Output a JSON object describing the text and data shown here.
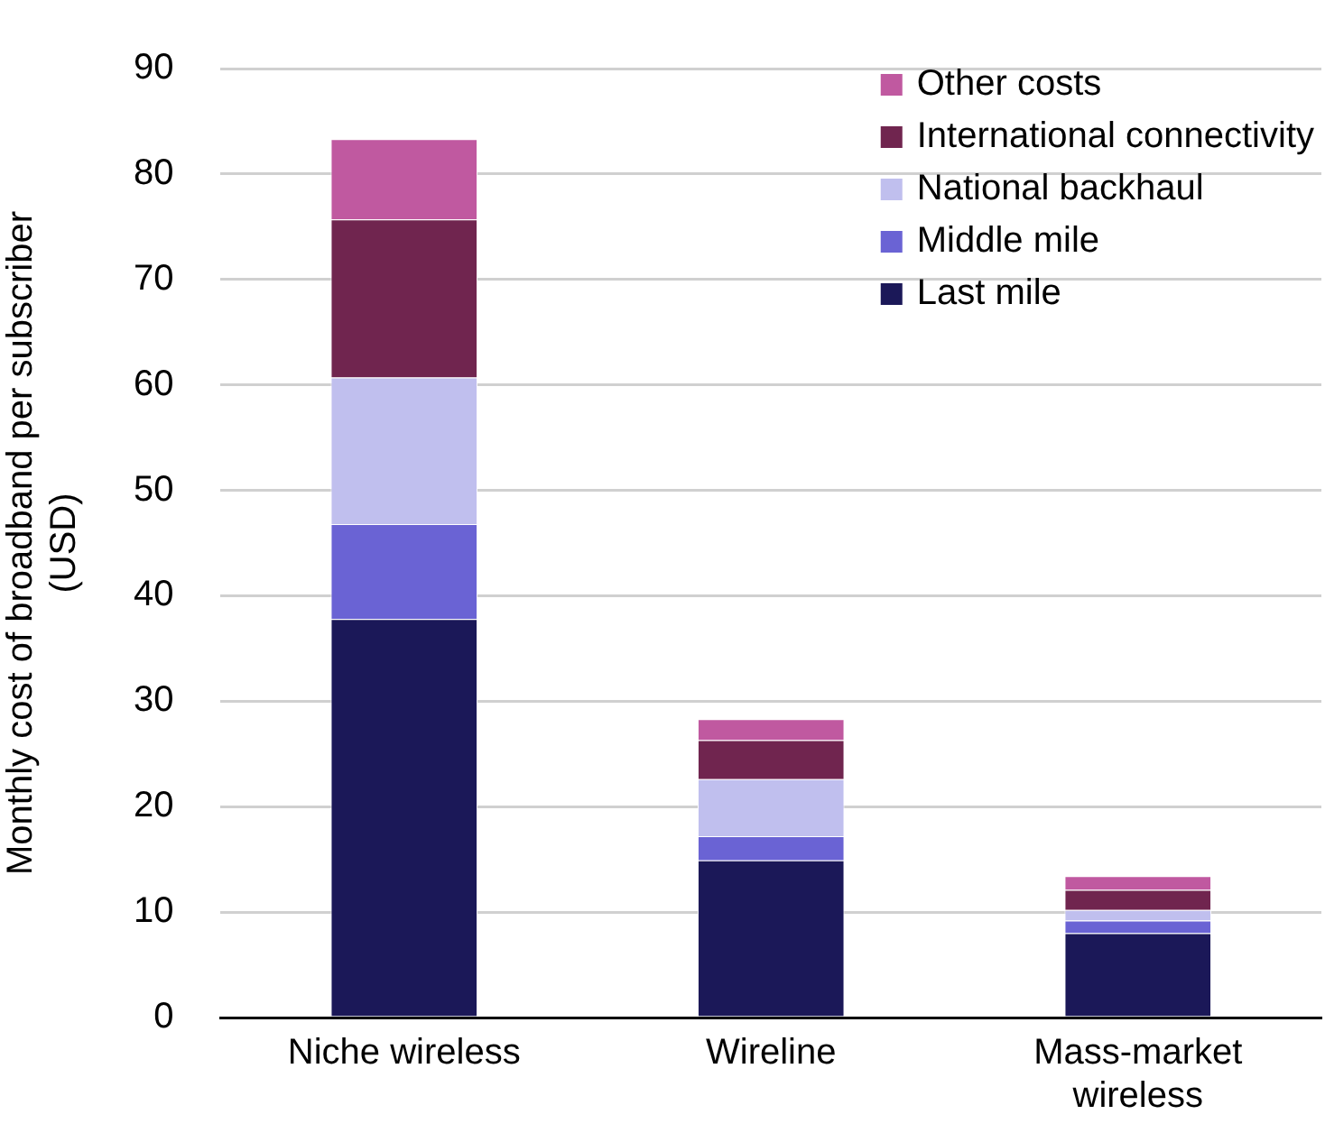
{
  "chart_data": {
    "type": "bar",
    "stacked": true,
    "ylabel": "Monthly cost of broadband per subscriber (USD)",
    "categories": [
      "Niche wireless",
      "Wireline",
      "Mass-market wireless"
    ],
    "series": [
      {
        "name": "Last mile",
        "color": "#1b1858",
        "values": [
          37.8,
          14.9,
          8.0
        ]
      },
      {
        "name": "Middle mile",
        "color": "#6a63d4",
        "values": [
          9.0,
          2.3,
          1.2
        ]
      },
      {
        "name": "National backhaul",
        "color": "#c0bfee",
        "values": [
          13.9,
          5.4,
          1.0
        ]
      },
      {
        "name": "International connectivity",
        "color": "#70254f",
        "values": [
          15.0,
          3.7,
          1.9
        ]
      },
      {
        "name": "Other costs",
        "color": "#c059a0",
        "values": [
          7.6,
          2.0,
          1.3
        ]
      }
    ],
    "ylim": [
      0,
      90
    ],
    "yticks": [
      0,
      10,
      20,
      30,
      40,
      50,
      60,
      70,
      80,
      90
    ],
    "grid": "y",
    "legend": "top right"
  }
}
